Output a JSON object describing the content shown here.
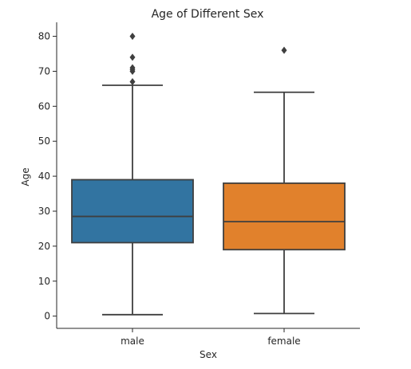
{
  "chart_data": {
    "type": "box",
    "title": "Age of Different Sex",
    "xlabel": "Sex",
    "ylabel": "Age",
    "categories": [
      "male",
      "female"
    ],
    "ylim": [
      -3.5,
      84
    ],
    "yticks": [
      0,
      10,
      20,
      30,
      40,
      50,
      60,
      70,
      80
    ],
    "grid": false,
    "boxes": [
      {
        "name": "male",
        "color": "#3274a1",
        "whisker_low": 0.42,
        "q1": 21,
        "median": 28.5,
        "q3": 39,
        "whisker_high": 66,
        "outliers": [
          67,
          70,
          70.5,
          71,
          74,
          80
        ]
      },
      {
        "name": "female",
        "color": "#e1812c",
        "whisker_low": 0.75,
        "q1": 19,
        "median": 27,
        "q3": 38,
        "whisker_high": 64,
        "outliers": [
          76
        ]
      }
    ]
  }
}
